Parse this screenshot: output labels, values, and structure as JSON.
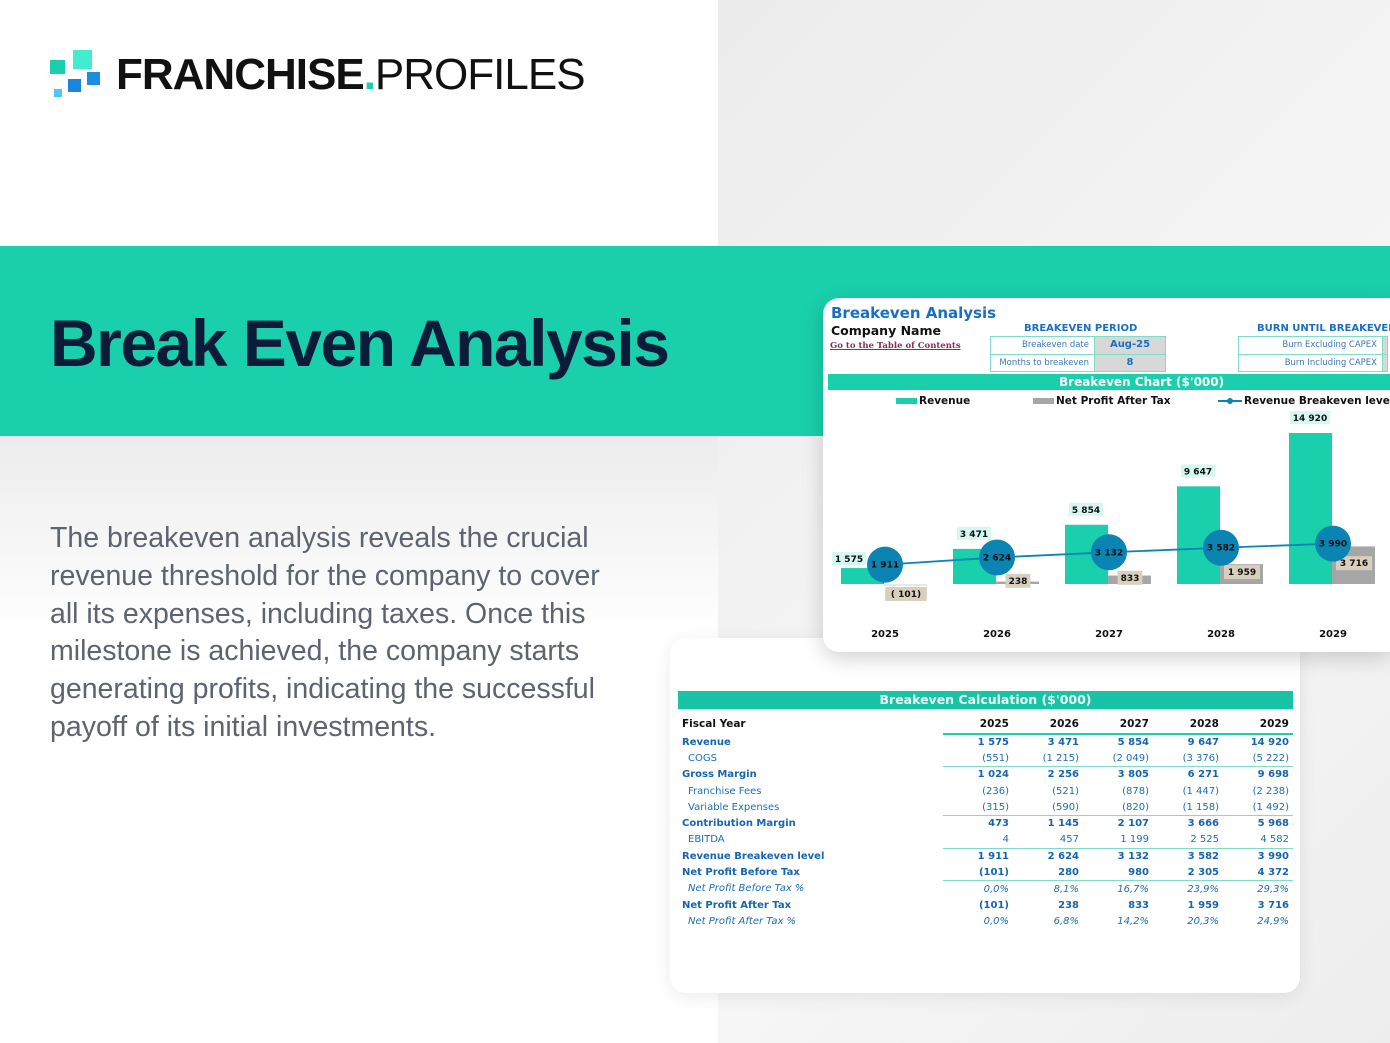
{
  "brand": {
    "bold": "FRANCHISE",
    "dot": ".",
    "light": "PROFILES",
    "colors": [
      "#19cfac",
      "#43ecd0",
      "#1a8fe0",
      "#1a85df",
      "#4bc8f5"
    ]
  },
  "hero": {
    "title": "Break Even Analysis"
  },
  "description": "The breakeven analysis reveals the crucial  revenue threshold for the company to cover all its expenses, including taxes. Once this milestone is achieved, the company starts generating profits, indicating the successful payoff of its initial investments.",
  "sheet": {
    "title": "Breakeven Analysis",
    "company": "Company Name",
    "toc_link": "Go to the Table of Contents",
    "period": {
      "header": "BREAKEVEN PERIOD",
      "rows": [
        {
          "label": "Breakeven date",
          "value": "Aug-25"
        },
        {
          "label": "Months to breakeven",
          "value": "8"
        }
      ]
    },
    "burn": {
      "header": "BURN UNTIL BREAKEVEN",
      "rows": [
        {
          "label": "Burn Excluding CAPEX"
        },
        {
          "label": "Burn Including CAPEX"
        }
      ]
    },
    "chart_title": "Breakeven Chart ($'000)"
  },
  "chart_data": {
    "type": "bar",
    "title": "Breakeven Chart ($'000)",
    "categories": [
      "2025",
      "2026",
      "2027",
      "2028",
      "2029"
    ],
    "series": [
      {
        "name": "Revenue",
        "kind": "bar",
        "color": "#19cfac",
        "values": [
          1575,
          3471,
          5854,
          9647,
          14920
        ],
        "labels": [
          "1 575",
          "3 471",
          "5 854",
          "9 647",
          "14 920"
        ]
      },
      {
        "name": "Net Profit After Tax",
        "kind": "bar",
        "color": "#a6a6a6",
        "values": [
          -101,
          238,
          833,
          1959,
          3716
        ],
        "labels": [
          "( 101)",
          "238",
          "833",
          "1 959",
          "3 716"
        ]
      },
      {
        "name": "Revenue Breakeven level",
        "kind": "line",
        "color": "#0b84b3",
        "values": [
          1911,
          2624,
          3132,
          3582,
          3990
        ],
        "labels": [
          "1 911",
          "2 624",
          "3 132",
          "3 582",
          "3 990"
        ]
      }
    ],
    "legend": "top"
  },
  "table": {
    "title": "Breakeven Calculation ($'000)",
    "header": "Fiscal Year",
    "years": [
      "2025",
      "2026",
      "2027",
      "2028",
      "2029"
    ],
    "rows": [
      {
        "label": "Revenue",
        "style": "b",
        "values": [
          "1 575",
          "3 471",
          "5 854",
          "9 647",
          "14 920"
        ]
      },
      {
        "label": "COGS",
        "style": "s",
        "values": [
          "(551)",
          "(1 215)",
          "(2 049)",
          "(3 376)",
          "(5 222)"
        ]
      },
      {
        "label": "Gross Margin",
        "style": "b top",
        "values": [
          "1 024",
          "2 256",
          "3 805",
          "6 271",
          "9 698"
        ]
      },
      {
        "label": "Franchise Fees",
        "style": "s",
        "values": [
          "(236)",
          "(521)",
          "(878)",
          "(1 447)",
          "(2 238)"
        ]
      },
      {
        "label": "Variable Expenses",
        "style": "s",
        "values": [
          "(315)",
          "(590)",
          "(820)",
          "(1 158)",
          "(1 492)"
        ]
      },
      {
        "label": "Contribution Margin",
        "style": "b top",
        "values": [
          "473",
          "1 145",
          "2 107",
          "3 666",
          "5 968"
        ]
      },
      {
        "label": "EBITDA",
        "style": "s",
        "values": [
          "4",
          "457",
          "1 199",
          "2 525",
          "4 582"
        ]
      },
      {
        "label": "Revenue Breakeven level",
        "style": "b top",
        "values": [
          "1 911",
          "2 624",
          "3 132",
          "3 582",
          "3 990"
        ]
      },
      {
        "label": "Net Profit Before Tax",
        "style": "b",
        "values": [
          "(101)",
          "280",
          "980",
          "2 305",
          "4 372"
        ]
      },
      {
        "label": "Net Profit Before Tax %",
        "style": "i top",
        "values": [
          "0,0%",
          "8,1%",
          "16,7%",
          "23,9%",
          "29,3%"
        ]
      },
      {
        "label": "Net Profit After Tax",
        "style": "b",
        "values": [
          "(101)",
          "238",
          "833",
          "1 959",
          "3 716"
        ]
      },
      {
        "label": "Net Profit After Tax %",
        "style": "i",
        "values": [
          "0,0%",
          "6,8%",
          "14,2%",
          "20,3%",
          "24,9%"
        ]
      }
    ]
  }
}
